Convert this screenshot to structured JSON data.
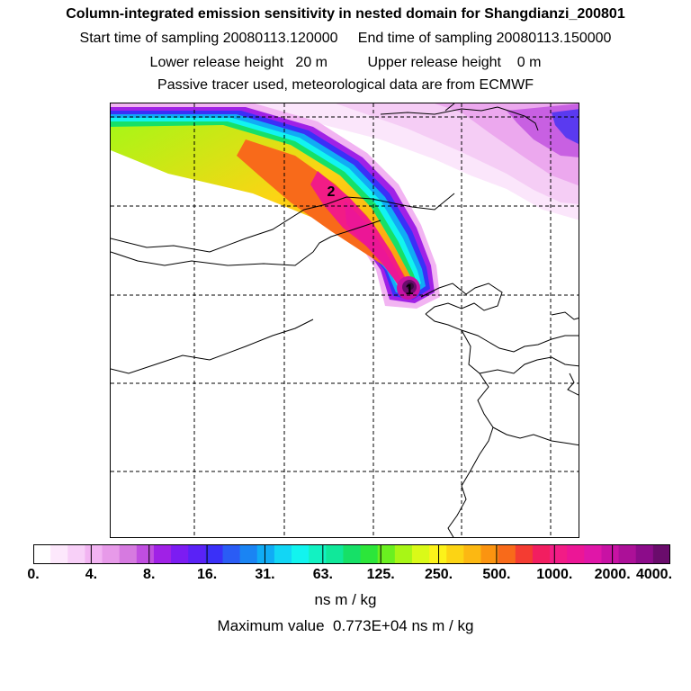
{
  "header": {
    "title": "Column-integrated emission sensitivity in nested domain for Shangdianzi_200801",
    "sampling_line": "Start time of sampling 20080113.120000     End time of sampling 20080113.150000",
    "release_line": "Lower release height   20 m          Upper release height    0 m",
    "tracer_line": "Passive tracer used, meteorological data are from ECMWF"
  },
  "map": {
    "markers": [
      {
        "label": "1"
      },
      {
        "label": "2"
      }
    ]
  },
  "colorbar": {
    "colors": [
      "#ffffff",
      "#fde8fc",
      "#f8d0f8",
      "#f2b4f2",
      "#e79ae9",
      "#d67ae0",
      "#c04ee0",
      "#a021e6",
      "#7c1cf2",
      "#5a22f6",
      "#3a30f8",
      "#2a5cf5",
      "#1a84f3",
      "#10acf5",
      "#12d6f5",
      "#12f4ef",
      "#12f2c2",
      "#10e89a",
      "#16e067",
      "#2ce63a",
      "#6af020",
      "#a8f616",
      "#dafa18",
      "#fcf21a",
      "#fcd414",
      "#fcb812",
      "#fb9410",
      "#f86a1a",
      "#f43c32",
      "#f21e60",
      "#f21c86",
      "#ec1696",
      "#e016a8",
      "#c812a4",
      "#ac1098",
      "#8c0c8a",
      "#6a0c6c"
    ],
    "tick_labels": [
      "0.",
      "4.",
      "8.",
      "16.",
      "31.",
      "63.",
      "125.",
      "250.",
      "500.",
      "1000.",
      "2000.",
      "4000."
    ],
    "units": "ns m / kg",
    "max_value": "Maximum value  0.773E+04 ns m / kg"
  }
}
